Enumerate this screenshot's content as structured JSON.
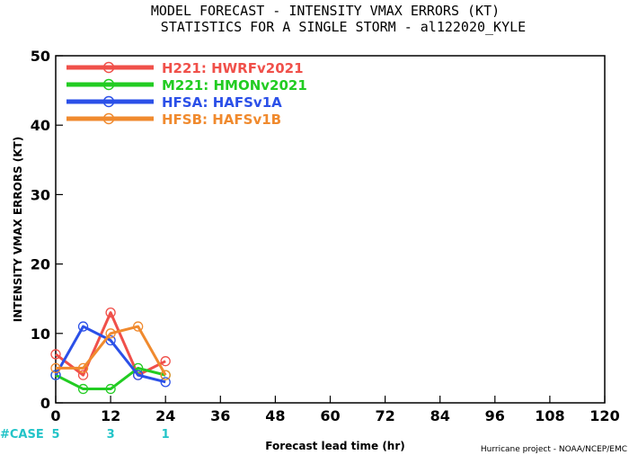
{
  "chart_data": {
    "type": "line",
    "title": "MODEL FORECAST - INTENSITY VMAX ERRORS (KT)",
    "subtitle": "STATISTICS FOR A SINGLE STORM - al122020_KYLE",
    "xlabel": "Forecast lead time (hr)",
    "ylabel": "INTENSITY VMAX ERRORS (KT)",
    "xlim": [
      0,
      120
    ],
    "ylim": [
      0,
      50
    ],
    "x_ticks": [
      "0",
      "12",
      "24",
      "36",
      "48",
      "60",
      "72",
      "84",
      "96",
      "108",
      "120"
    ],
    "y_ticks": [
      "0",
      "10",
      "20",
      "30",
      "40",
      "50"
    ],
    "x": [
      0,
      6,
      12,
      18,
      24
    ],
    "series": [
      {
        "name": "H221: HWRFv2021",
        "color": "#f0504a",
        "values": [
          7,
          4,
          13,
          4,
          6
        ]
      },
      {
        "name": "M221: HMONv2021",
        "color": "#22cc22",
        "values": [
          4,
          2,
          2,
          5,
          4
        ]
      },
      {
        "name": "HFSA: HAFSv1A",
        "color": "#2b50e8",
        "values": [
          4,
          11,
          9,
          4,
          3
        ]
      },
      {
        "name": "HFSB: HAFSv1B",
        "color": "#f08a2e",
        "values": [
          5,
          5,
          10,
          11,
          4
        ]
      }
    ],
    "case_label": "#CASE",
    "cases": [
      {
        "x": 0,
        "count": "5"
      },
      {
        "x": 12,
        "count": "3"
      },
      {
        "x": 24,
        "count": "1"
      }
    ],
    "case_color": "#22c4c8",
    "credit": "Hurricane project - NOAA/NCEP/EMC",
    "legend_position": "top-left",
    "grid": false
  }
}
